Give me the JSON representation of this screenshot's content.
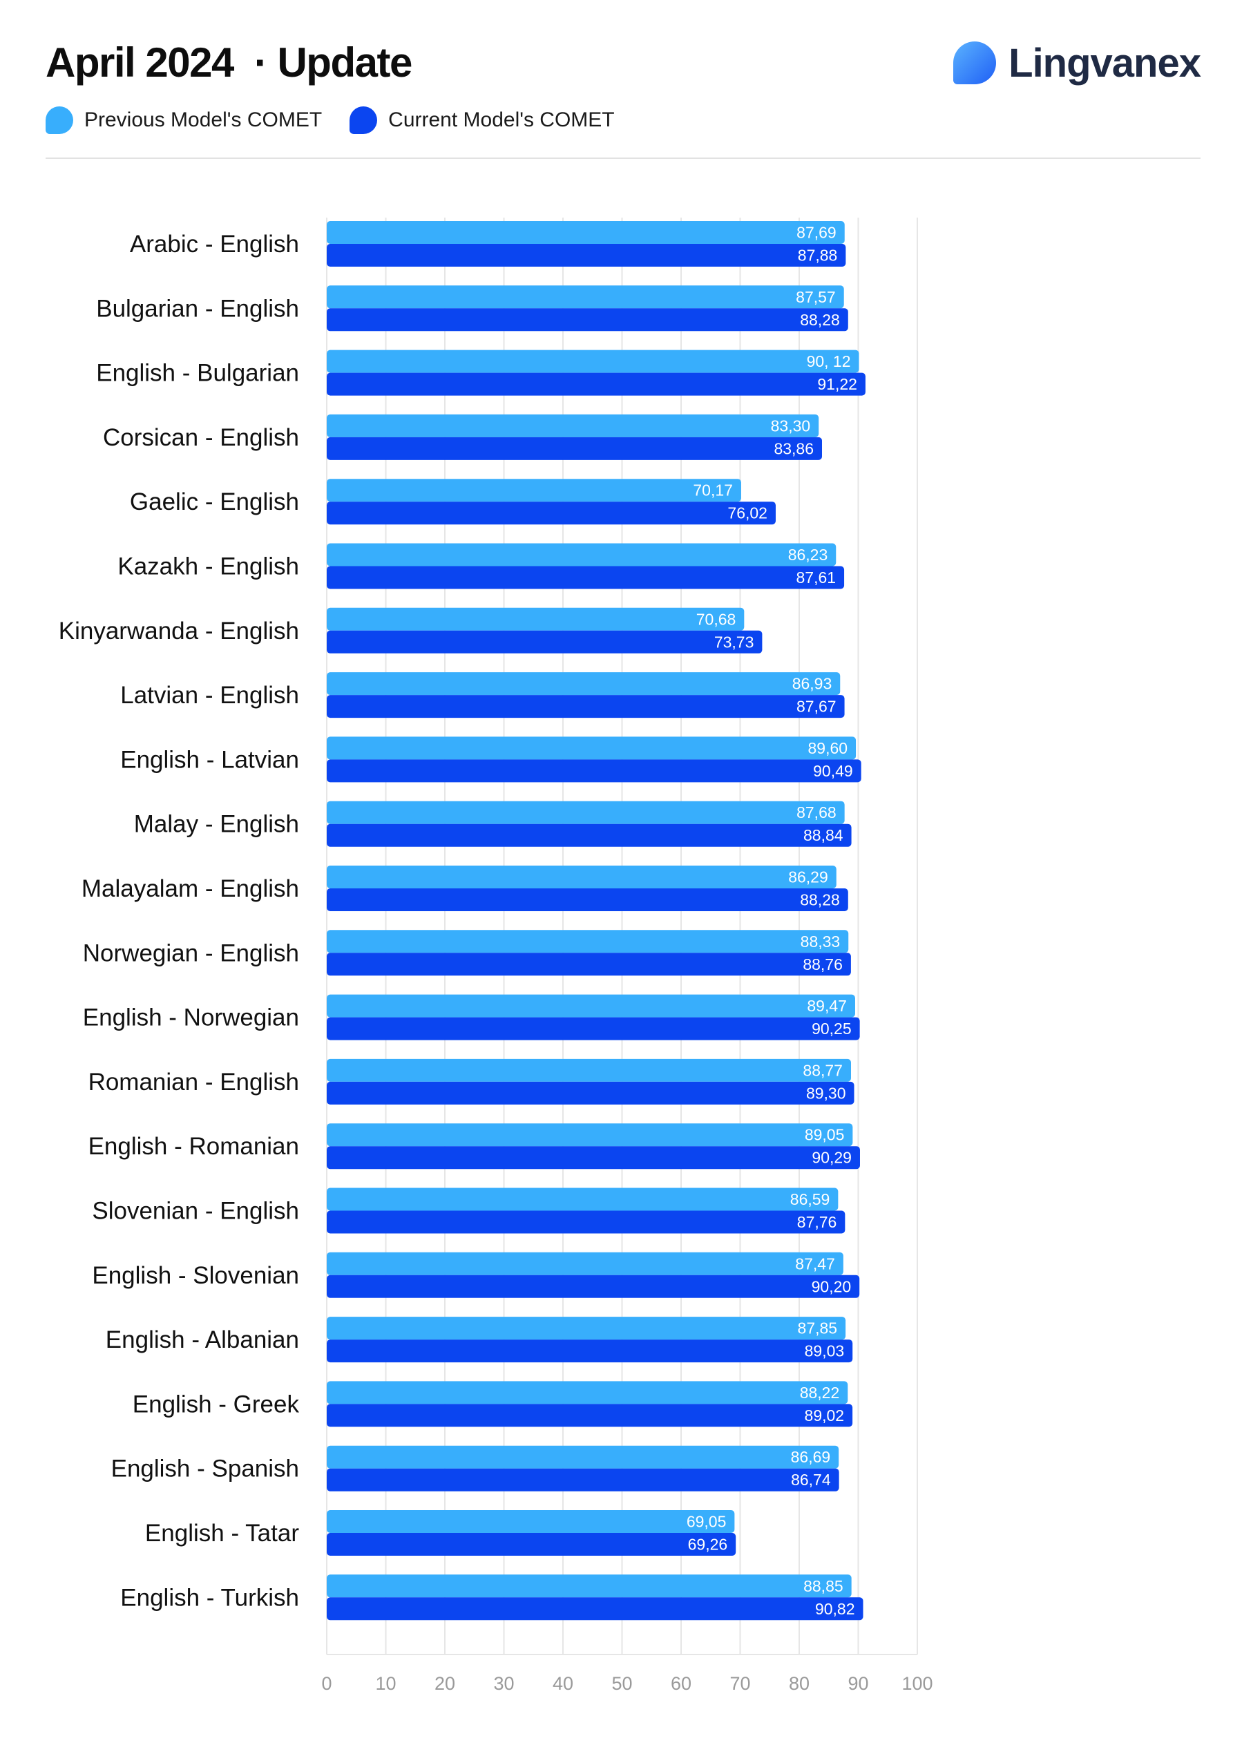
{
  "header": {
    "title_date": "April 2024",
    "title_sep": "· Update",
    "logo_text": "Lingvanex"
  },
  "legend": [
    {
      "label": "Previous Model's COMET",
      "color": "#38aefc"
    },
    {
      "label": "Current Model's COMET",
      "color": "#0b45f0"
    }
  ],
  "chart_data": {
    "type": "bar",
    "orientation": "horizontal",
    "categories": [
      "Arabic - English",
      "Bulgarian - English",
      "English - Bulgarian",
      "Corsican - English",
      "Gaelic - English",
      "Kazakh - English",
      "Kinyarwanda - English",
      "Latvian - English",
      "English - Latvian",
      "Malay - English",
      "Malayalam - English",
      "Norwegian - English",
      "English - Norwegian",
      "Romanian - English",
      "English - Romanian",
      "Slovenian - English",
      "English - Slovenian",
      "English - Albanian",
      "English - Greek",
      "English - Spanish",
      "English - Tatar",
      "English - Turkish"
    ],
    "series": [
      {
        "name": "Previous Model's COMET",
        "color": "#38aefc",
        "values": [
          87.69,
          87.57,
          90.12,
          83.3,
          70.17,
          86.23,
          70.68,
          86.93,
          89.6,
          87.68,
          86.29,
          88.33,
          89.47,
          88.77,
          89.05,
          86.59,
          87.47,
          87.85,
          88.22,
          86.69,
          69.05,
          88.85
        ],
        "labels": [
          "87,69",
          "87,57",
          "90, 12",
          "83,30",
          "70,17",
          "86,23",
          "70,68",
          "86,93",
          "89,60",
          "87,68",
          "86,29",
          "88,33",
          "89,47",
          "88,77",
          "89,05",
          "86,59",
          "87,47",
          "87,85",
          "88,22",
          "86,69",
          "69,05",
          "88,85"
        ]
      },
      {
        "name": "Current Model's COMET",
        "color": "#0b45f0",
        "values": [
          87.88,
          88.28,
          91.22,
          83.86,
          76.02,
          87.61,
          73.73,
          87.67,
          90.49,
          88.84,
          88.28,
          88.76,
          90.25,
          89.3,
          90.29,
          87.76,
          90.2,
          89.03,
          89.02,
          86.74,
          69.26,
          90.82
        ],
        "labels": [
          "87,88",
          "88,28",
          "91,22",
          "83,86",
          "76,02",
          "87,61",
          "73,73",
          "87,67",
          "90,49",
          "88,84",
          "88,28",
          "88,76",
          "90,25",
          "89,30",
          "90,29",
          "87,76",
          "90,20",
          "89,03",
          "89,02",
          "86,74",
          "69,26",
          "90,82"
        ]
      }
    ],
    "xlim": [
      0,
      100
    ],
    "xticks": [
      0,
      10,
      20,
      30,
      40,
      50,
      60,
      70,
      80,
      90,
      100
    ],
    "grid": true,
    "legend_position": "top-left"
  }
}
